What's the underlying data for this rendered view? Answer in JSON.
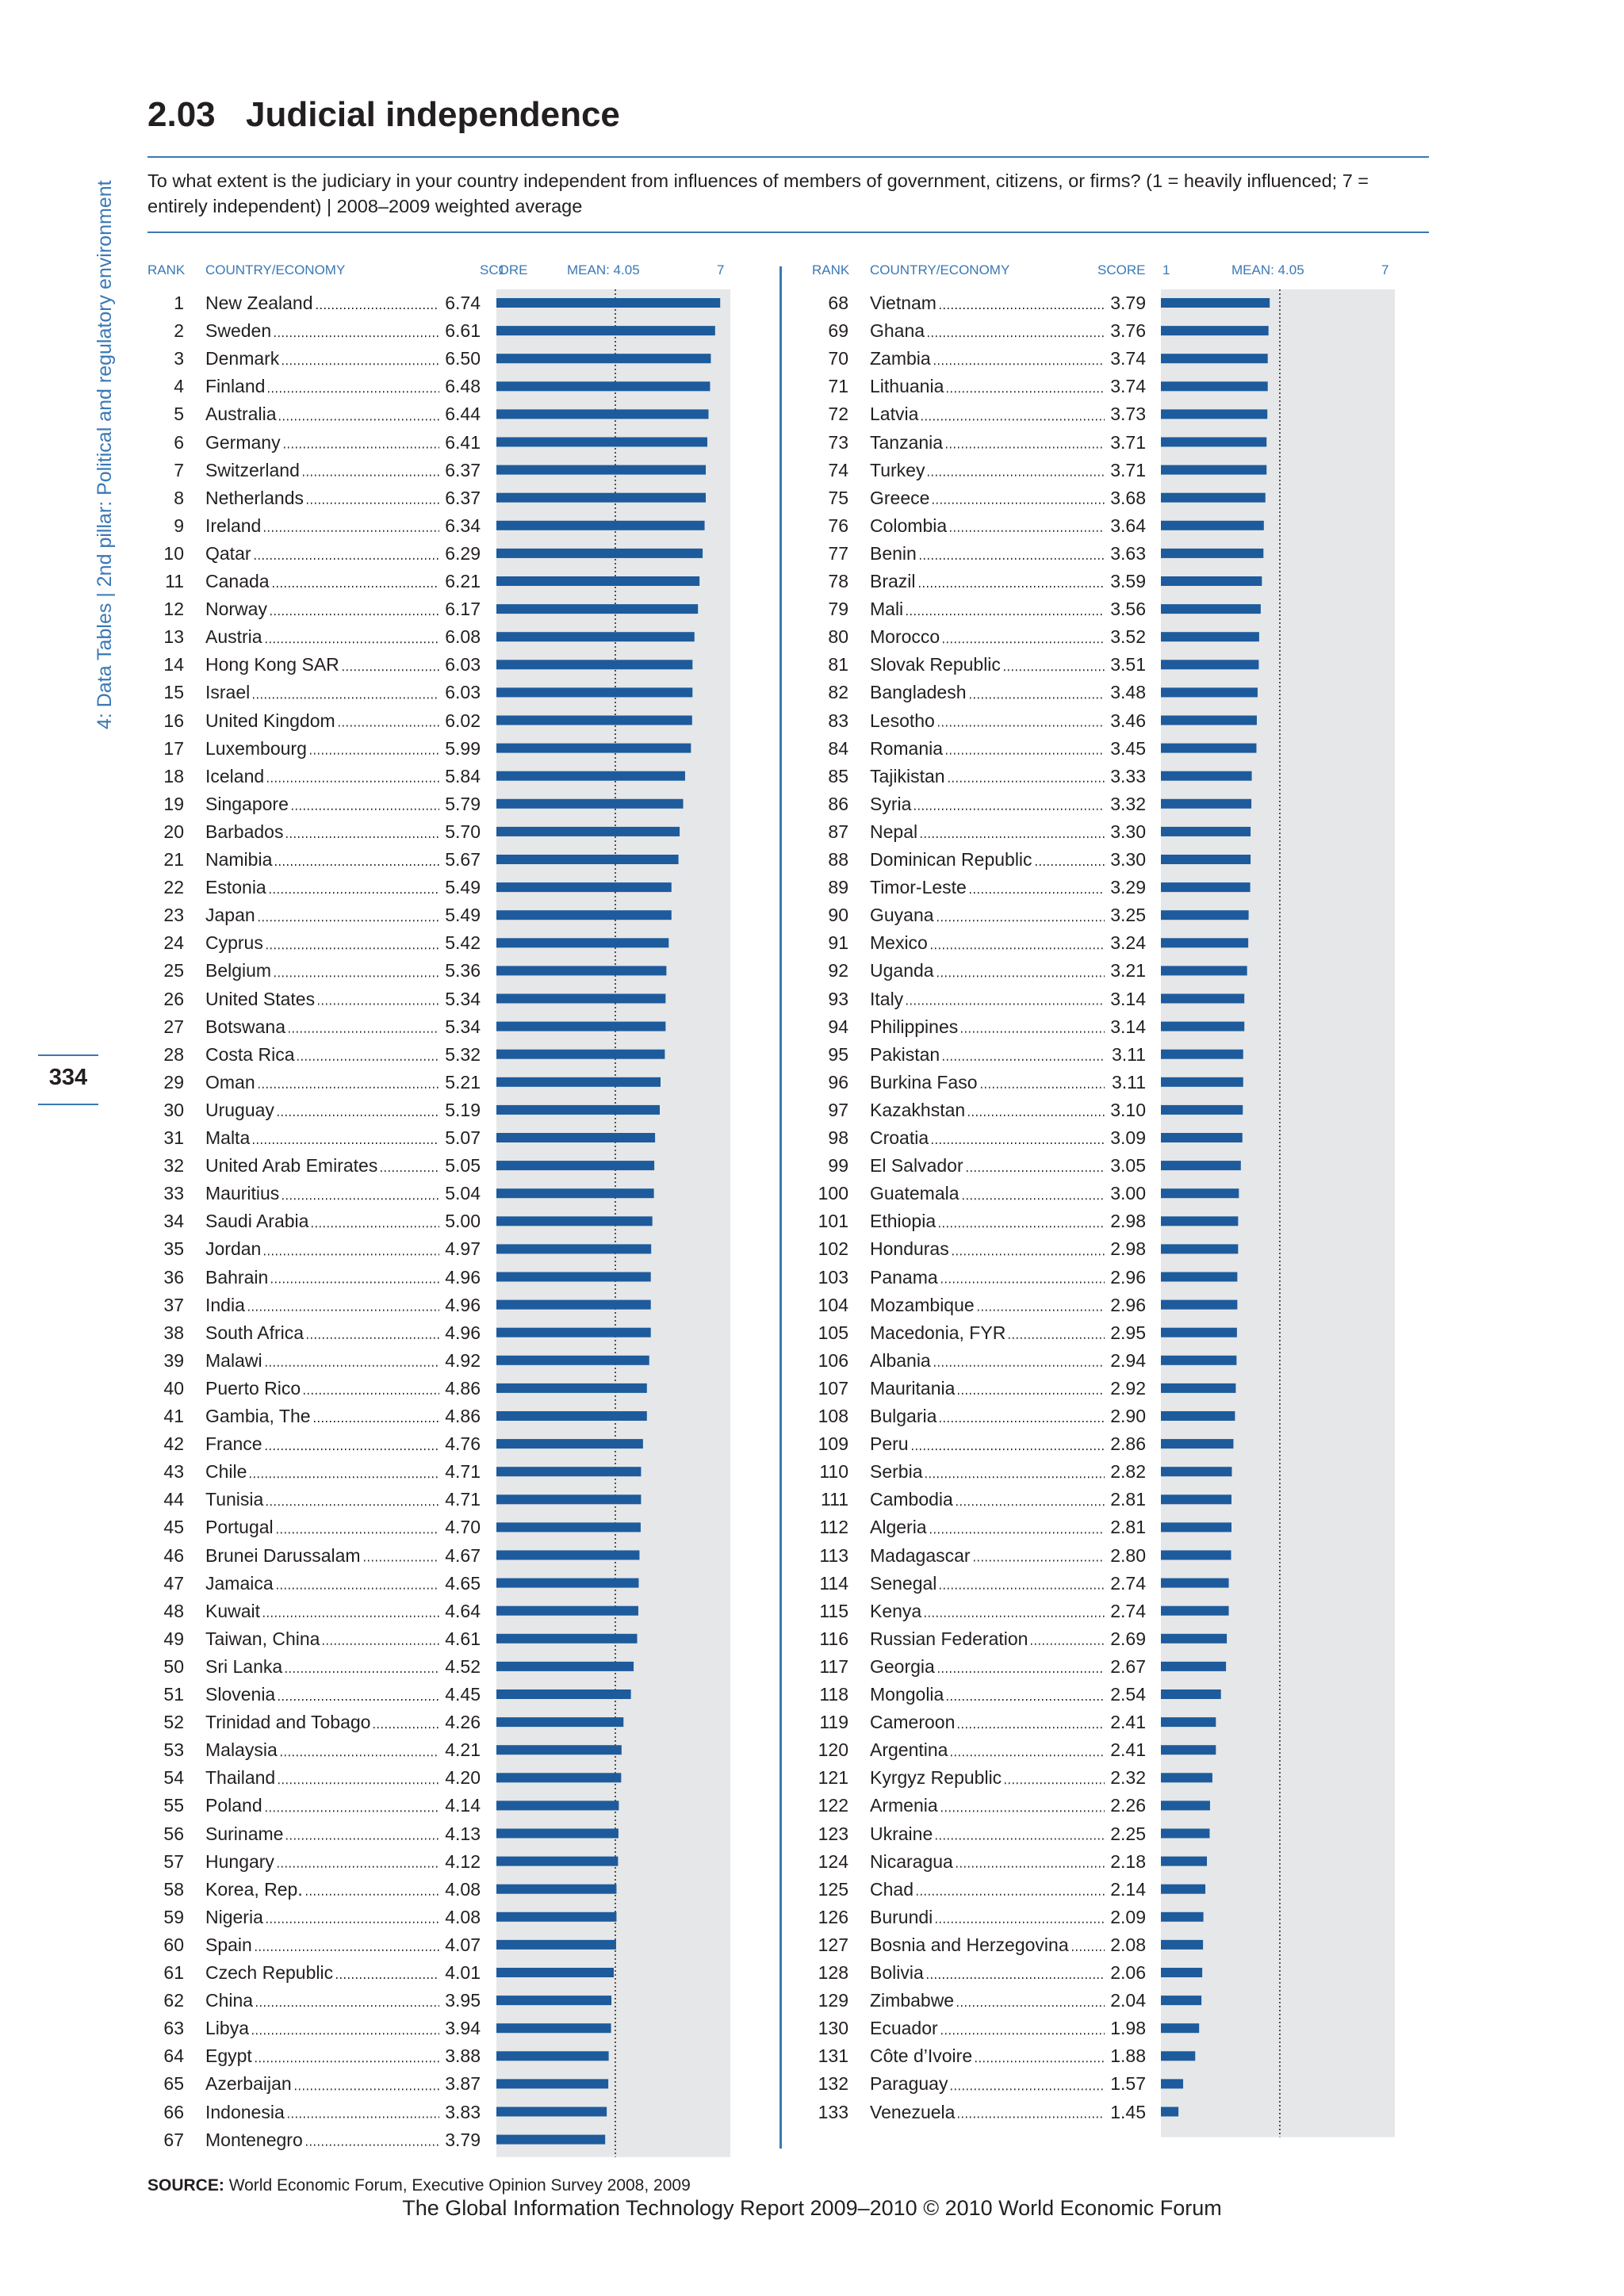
{
  "sidebar": {
    "section": "4: Data Tables",
    "separator": "|",
    "pillar": "2nd pillar: Political and regulatory environment",
    "page_number": "334"
  },
  "header": {
    "number": "2.03",
    "title": "Judicial independence",
    "question": "To what extent is the judiciary in your country independent from influences of members of government, citizens, or firms? (1 = heavily influenced; 7 = entirely independent)  |  2008–2009 weighted average"
  },
  "columns": {
    "rank": "RANK",
    "country": "COUNTRY/ECONOMY",
    "score": "SCORE",
    "axis_min": "1",
    "mean": "MEAN: 4.05",
    "axis_max": "7"
  },
  "colors": {
    "bar": "#1d5b9c",
    "background": "#e6e7e8",
    "accent": "#3a78b5"
  },
  "chart_data": {
    "type": "bar",
    "orientation": "horizontal",
    "xlim": [
      1,
      7
    ],
    "mean": 4.05,
    "rows": [
      {
        "rank": 1,
        "country": "New Zealand",
        "score": "6.74"
      },
      {
        "rank": 2,
        "country": "Sweden",
        "score": "6.61"
      },
      {
        "rank": 3,
        "country": "Denmark",
        "score": "6.50"
      },
      {
        "rank": 4,
        "country": "Finland",
        "score": "6.48"
      },
      {
        "rank": 5,
        "country": "Australia",
        "score": "6.44"
      },
      {
        "rank": 6,
        "country": "Germany",
        "score": "6.41"
      },
      {
        "rank": 7,
        "country": "Switzerland",
        "score": "6.37"
      },
      {
        "rank": 8,
        "country": "Netherlands",
        "score": "6.37"
      },
      {
        "rank": 9,
        "country": "Ireland",
        "score": "6.34"
      },
      {
        "rank": 10,
        "country": "Qatar",
        "score": "6.29"
      },
      {
        "rank": 11,
        "country": "Canada",
        "score": "6.21"
      },
      {
        "rank": 12,
        "country": "Norway",
        "score": "6.17"
      },
      {
        "rank": 13,
        "country": "Austria",
        "score": "6.08"
      },
      {
        "rank": 14,
        "country": "Hong Kong SAR",
        "score": "6.03"
      },
      {
        "rank": 15,
        "country": "Israel",
        "score": "6.03"
      },
      {
        "rank": 16,
        "country": "United Kingdom",
        "score": "6.02"
      },
      {
        "rank": 17,
        "country": "Luxembourg",
        "score": "5.99"
      },
      {
        "rank": 18,
        "country": "Iceland",
        "score": "5.84"
      },
      {
        "rank": 19,
        "country": "Singapore",
        "score": "5.79"
      },
      {
        "rank": 20,
        "country": "Barbados",
        "score": "5.70"
      },
      {
        "rank": 21,
        "country": "Namibia",
        "score": "5.67"
      },
      {
        "rank": 22,
        "country": "Estonia",
        "score": "5.49"
      },
      {
        "rank": 23,
        "country": "Japan",
        "score": "5.49"
      },
      {
        "rank": 24,
        "country": "Cyprus",
        "score": "5.42"
      },
      {
        "rank": 25,
        "country": "Belgium",
        "score": "5.36"
      },
      {
        "rank": 26,
        "country": "United States",
        "score": "5.34"
      },
      {
        "rank": 27,
        "country": "Botswana",
        "score": "5.34"
      },
      {
        "rank": 28,
        "country": "Costa Rica",
        "score": "5.32"
      },
      {
        "rank": 29,
        "country": "Oman",
        "score": "5.21"
      },
      {
        "rank": 30,
        "country": "Uruguay",
        "score": "5.19"
      },
      {
        "rank": 31,
        "country": "Malta",
        "score": "5.07"
      },
      {
        "rank": 32,
        "country": "United Arab Emirates",
        "score": "5.05"
      },
      {
        "rank": 33,
        "country": "Mauritius",
        "score": "5.04"
      },
      {
        "rank": 34,
        "country": "Saudi Arabia",
        "score": "5.00"
      },
      {
        "rank": 35,
        "country": "Jordan",
        "score": "4.97"
      },
      {
        "rank": 36,
        "country": "Bahrain",
        "score": "4.96"
      },
      {
        "rank": 37,
        "country": "India",
        "score": "4.96"
      },
      {
        "rank": 38,
        "country": "South Africa",
        "score": "4.96"
      },
      {
        "rank": 39,
        "country": "Malawi",
        "score": "4.92"
      },
      {
        "rank": 40,
        "country": "Puerto Rico",
        "score": "4.86"
      },
      {
        "rank": 41,
        "country": "Gambia, The",
        "score": "4.86"
      },
      {
        "rank": 42,
        "country": "France",
        "score": "4.76"
      },
      {
        "rank": 43,
        "country": "Chile",
        "score": "4.71"
      },
      {
        "rank": 44,
        "country": "Tunisia",
        "score": "4.71"
      },
      {
        "rank": 45,
        "country": "Portugal",
        "score": "4.70"
      },
      {
        "rank": 46,
        "country": "Brunei Darussalam",
        "score": "4.67"
      },
      {
        "rank": 47,
        "country": "Jamaica",
        "score": "4.65"
      },
      {
        "rank": 48,
        "country": "Kuwait",
        "score": "4.64"
      },
      {
        "rank": 49,
        "country": "Taiwan, China",
        "score": "4.61"
      },
      {
        "rank": 50,
        "country": "Sri Lanka",
        "score": "4.52"
      },
      {
        "rank": 51,
        "country": "Slovenia",
        "score": "4.45"
      },
      {
        "rank": 52,
        "country": "Trinidad and Tobago",
        "score": "4.26"
      },
      {
        "rank": 53,
        "country": "Malaysia",
        "score": "4.21"
      },
      {
        "rank": 54,
        "country": "Thailand",
        "score": "4.20"
      },
      {
        "rank": 55,
        "country": "Poland",
        "score": "4.14"
      },
      {
        "rank": 56,
        "country": "Suriname",
        "score": "4.13"
      },
      {
        "rank": 57,
        "country": "Hungary",
        "score": "4.12"
      },
      {
        "rank": 58,
        "country": "Korea, Rep.",
        "score": "4.08"
      },
      {
        "rank": 59,
        "country": "Nigeria",
        "score": "4.08"
      },
      {
        "rank": 60,
        "country": "Spain",
        "score": "4.07"
      },
      {
        "rank": 61,
        "country": "Czech Republic",
        "score": "4.01"
      },
      {
        "rank": 62,
        "country": "China",
        "score": "3.95"
      },
      {
        "rank": 63,
        "country": "Libya",
        "score": "3.94"
      },
      {
        "rank": 64,
        "country": "Egypt",
        "score": "3.88"
      },
      {
        "rank": 65,
        "country": "Azerbaijan",
        "score": "3.87"
      },
      {
        "rank": 66,
        "country": "Indonesia",
        "score": "3.83"
      },
      {
        "rank": 67,
        "country": "Montenegro",
        "score": "3.79"
      },
      {
        "rank": 68,
        "country": "Vietnam",
        "score": "3.79"
      },
      {
        "rank": 69,
        "country": "Ghana",
        "score": "3.76"
      },
      {
        "rank": 70,
        "country": "Zambia",
        "score": "3.74"
      },
      {
        "rank": 71,
        "country": "Lithuania",
        "score": "3.74"
      },
      {
        "rank": 72,
        "country": "Latvia",
        "score": "3.73"
      },
      {
        "rank": 73,
        "country": "Tanzania",
        "score": "3.71"
      },
      {
        "rank": 74,
        "country": "Turkey",
        "score": "3.71"
      },
      {
        "rank": 75,
        "country": "Greece",
        "score": "3.68"
      },
      {
        "rank": 76,
        "country": "Colombia",
        "score": "3.64"
      },
      {
        "rank": 77,
        "country": "Benin",
        "score": "3.63"
      },
      {
        "rank": 78,
        "country": "Brazil",
        "score": "3.59"
      },
      {
        "rank": 79,
        "country": "Mali",
        "score": "3.56"
      },
      {
        "rank": 80,
        "country": "Morocco",
        "score": "3.52"
      },
      {
        "rank": 81,
        "country": "Slovak Republic",
        "score": "3.51"
      },
      {
        "rank": 82,
        "country": "Bangladesh",
        "score": "3.48"
      },
      {
        "rank": 83,
        "country": "Lesotho",
        "score": "3.46"
      },
      {
        "rank": 84,
        "country": "Romania",
        "score": "3.45"
      },
      {
        "rank": 85,
        "country": "Tajikistan",
        "score": "3.33"
      },
      {
        "rank": 86,
        "country": "Syria",
        "score": "3.32"
      },
      {
        "rank": 87,
        "country": "Nepal",
        "score": "3.30"
      },
      {
        "rank": 88,
        "country": "Dominican Republic",
        "score": "3.30"
      },
      {
        "rank": 89,
        "country": "Timor-Leste",
        "score": "3.29"
      },
      {
        "rank": 90,
        "country": "Guyana",
        "score": "3.25"
      },
      {
        "rank": 91,
        "country": "Mexico",
        "score": "3.24"
      },
      {
        "rank": 92,
        "country": "Uganda",
        "score": "3.21"
      },
      {
        "rank": 93,
        "country": "Italy",
        "score": "3.14"
      },
      {
        "rank": 94,
        "country": "Philippines",
        "score": "3.14"
      },
      {
        "rank": 95,
        "country": "Pakistan",
        "score": "3.11"
      },
      {
        "rank": 96,
        "country": "Burkina Faso",
        "score": "3.11"
      },
      {
        "rank": 97,
        "country": "Kazakhstan",
        "score": "3.10"
      },
      {
        "rank": 98,
        "country": "Croatia",
        "score": "3.09"
      },
      {
        "rank": 99,
        "country": "El Salvador",
        "score": "3.05"
      },
      {
        "rank": 100,
        "country": "Guatemala",
        "score": "3.00"
      },
      {
        "rank": 101,
        "country": "Ethiopia",
        "score": "2.98"
      },
      {
        "rank": 102,
        "country": "Honduras",
        "score": "2.98"
      },
      {
        "rank": 103,
        "country": "Panama",
        "score": "2.96"
      },
      {
        "rank": 104,
        "country": "Mozambique",
        "score": "2.96"
      },
      {
        "rank": 105,
        "country": "Macedonia, FYR",
        "score": "2.95"
      },
      {
        "rank": 106,
        "country": "Albania",
        "score": "2.94"
      },
      {
        "rank": 107,
        "country": "Mauritania",
        "score": "2.92"
      },
      {
        "rank": 108,
        "country": "Bulgaria",
        "score": "2.90"
      },
      {
        "rank": 109,
        "country": "Peru",
        "score": "2.86"
      },
      {
        "rank": 110,
        "country": "Serbia",
        "score": "2.82"
      },
      {
        "rank": 111,
        "country": "Cambodia",
        "score": "2.81"
      },
      {
        "rank": 112,
        "country": "Algeria",
        "score": "2.81"
      },
      {
        "rank": 113,
        "country": "Madagascar",
        "score": "2.80"
      },
      {
        "rank": 114,
        "country": "Senegal",
        "score": "2.74"
      },
      {
        "rank": 115,
        "country": "Kenya",
        "score": "2.74"
      },
      {
        "rank": 116,
        "country": "Russian Federation",
        "score": "2.69"
      },
      {
        "rank": 117,
        "country": "Georgia",
        "score": "2.67"
      },
      {
        "rank": 118,
        "country": "Mongolia",
        "score": "2.54"
      },
      {
        "rank": 119,
        "country": "Cameroon",
        "score": "2.41"
      },
      {
        "rank": 120,
        "country": "Argentina",
        "score": "2.41"
      },
      {
        "rank": 121,
        "country": "Kyrgyz Republic",
        "score": "2.32"
      },
      {
        "rank": 122,
        "country": "Armenia",
        "score": "2.26"
      },
      {
        "rank": 123,
        "country": "Ukraine",
        "score": "2.25"
      },
      {
        "rank": 124,
        "country": "Nicaragua",
        "score": "2.18"
      },
      {
        "rank": 125,
        "country": "Chad",
        "score": "2.14"
      },
      {
        "rank": 126,
        "country": "Burundi",
        "score": "2.09"
      },
      {
        "rank": 127,
        "country": "Bosnia and Herzegovina",
        "score": "2.08"
      },
      {
        "rank": 128,
        "country": "Bolivia",
        "score": "2.06"
      },
      {
        "rank": 129,
        "country": "Zimbabwe",
        "score": "2.04"
      },
      {
        "rank": 130,
        "country": "Ecuador",
        "score": "1.98"
      },
      {
        "rank": 131,
        "country": "Côte d’Ivoire",
        "score": "1.88"
      },
      {
        "rank": 132,
        "country": "Paraguay",
        "score": "1.57"
      },
      {
        "rank": 133,
        "country": "Venezuela",
        "score": "1.45"
      }
    ]
  },
  "source": {
    "label": "SOURCE:",
    "text": "World Economic Forum, Executive Opinion Survey 2008, 2009"
  },
  "footer": "The Global Information Technology Report 2009–2010 © 2010 World Economic Forum"
}
